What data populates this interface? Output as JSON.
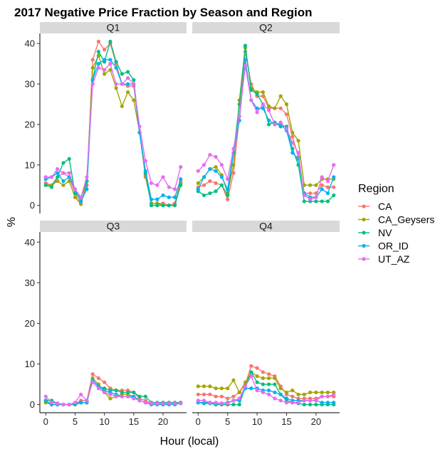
{
  "chart_data": {
    "type": "line",
    "title": "2017 Negative Price Fraction by Season and Region",
    "xlabel": "Hour (local)",
    "ylabel": "%",
    "xlim": [
      -1,
      24
    ],
    "ylim": [
      -2,
      42.5
    ],
    "x_ticks": [
      0,
      5,
      10,
      15,
      20
    ],
    "y_ticks": [
      0,
      10,
      20,
      30,
      40
    ],
    "legend": {
      "title": "Region",
      "position": "right"
    },
    "series_meta": [
      {
        "name": "CA",
        "color": "#F8766D"
      },
      {
        "name": "CA_Geysers",
        "color": "#A3A500"
      },
      {
        "name": "NV",
        "color": "#00BF7D"
      },
      {
        "name": "OR_ID",
        "color": "#00B0F6"
      },
      {
        "name": "UT_AZ",
        "color": "#E76BF3"
      }
    ],
    "x": [
      0,
      1,
      2,
      3,
      4,
      5,
      6,
      7,
      8,
      9,
      10,
      11,
      12,
      13,
      14,
      15,
      16,
      17,
      18,
      19,
      20,
      21,
      22,
      23
    ],
    "panels": [
      {
        "label": "Q1",
        "series": [
          {
            "name": "CA",
            "values": [
              5.5,
              5,
              7,
              8,
              7,
              3,
              0.5,
              5,
              36,
              40.5,
              38.5,
              40,
              35,
              30,
              29.5,
              29.5,
              18,
              7,
              0.5,
              0.5,
              0.5,
              0,
              0.5,
              6
            ]
          },
          {
            "name": "CA_Geysers",
            "values": [
              5,
              5,
              6,
              5,
              6,
              2,
              0.3,
              6,
              34,
              37,
              32.5,
              33.5,
              29,
              24.5,
              28,
              26,
              18,
              7.5,
              0.5,
              0.5,
              0,
              0,
              0,
              5.5
            ]
          },
          {
            "name": "NV",
            "values": [
              5,
              4.5,
              7,
              10.5,
              11.5,
              3,
              2,
              6,
              31,
              38,
              35.5,
              40.5,
              35.5,
              32.5,
              33,
              31,
              18,
              8,
              0,
              0,
              0,
              0,
              0,
              5
            ]
          },
          {
            "name": "OR_ID",
            "values": [
              6.5,
              7,
              8,
              6,
              7,
              4,
              1,
              4,
              31,
              35,
              36,
              36,
              34,
              30,
              30,
              30,
              18,
              8.5,
              1.5,
              1.5,
              2.5,
              2,
              2,
              6.5
            ]
          },
          {
            "name": "UT_AZ",
            "values": [
              7,
              7,
              9,
              8,
              8,
              4,
              2,
              7,
              30,
              34,
              33.5,
              35,
              30,
              30,
              31.5,
              30,
              19.5,
              11,
              5.5,
              5,
              7,
              4.5,
              4,
              9.5
            ]
          }
        ]
      },
      {
        "label": "Q2",
        "series": [
          {
            "name": "CA",
            "values": [
              4.5,
              5,
              6,
              5.5,
              5,
              1.5,
              8,
              22,
              38,
              30,
              27,
              27,
              24,
              24,
              24,
              22.5,
              17,
              12,
              3,
              3,
              3,
              5,
              4.5,
              4.5
            ]
          },
          {
            "name": "CA_Geysers",
            "values": [
              5.5,
              7,
              9,
              9.5,
              7.5,
              3,
              10,
              26,
              39,
              29,
              28,
              28,
              24.5,
              24,
              27,
              25,
              18,
              16,
              5,
              5,
              5,
              6.5,
              6.5,
              6.5
            ]
          },
          {
            "name": "NV",
            "values": [
              3.5,
              2.5,
              3,
              3.5,
              5,
              2.5,
              13,
              25,
              39.5,
              28.5,
              27.5,
              25,
              20,
              20.5,
              19.5,
              19.5,
              14,
              10,
              1,
              1,
              1,
              1,
              1,
              2.5
            ]
          },
          {
            "name": "OR_ID",
            "values": [
              4,
              7,
              9,
              8.5,
              7,
              4,
              13,
              21,
              36,
              26,
              24,
              24,
              21,
              20,
              20,
              18.5,
              13,
              11.5,
              3,
              2,
              2,
              4,
              3,
              7
            ]
          },
          {
            "name": "UT_AZ",
            "values": [
              8.5,
              10,
              12.5,
              12,
              10,
              6.5,
              14,
              22,
              34.5,
              26,
              23,
              25,
              23.5,
              20,
              20.5,
              19,
              15.5,
              13,
              2.5,
              1.5,
              2,
              7,
              6,
              10
            ]
          }
        ]
      },
      {
        "label": "Q3",
        "series": [
          {
            "name": "CA",
            "values": [
              0.5,
              0.5,
              0.3,
              0,
              0,
              0.3,
              1,
              1,
              7.5,
              6.5,
              5.5,
              4,
              3.5,
              3.5,
              3.5,
              3,
              1.5,
              1,
              0.3,
              0.3,
              0.3,
              0.3,
              0.3,
              0.3
            ]
          },
          {
            "name": "CA_Geysers",
            "values": [
              0.5,
              0,
              0,
              0,
              0,
              0,
              0.5,
              0.5,
              6.5,
              5,
              3,
              1.5,
              2,
              2.5,
              2.5,
              2,
              1,
              0.5,
              0.3,
              0.3,
              0.3,
              0.3,
              0.3,
              0.3
            ]
          },
          {
            "name": "NV",
            "values": [
              1,
              1,
              0.3,
              0,
              0,
              0,
              0.5,
              0.5,
              6,
              4.5,
              4,
              3.5,
              3.5,
              3,
              3,
              3,
              2,
              2,
              0.5,
              0.5,
              0.5,
              0.5,
              0.5,
              0.5
            ]
          },
          {
            "name": "OR_ID",
            "values": [
              1,
              0,
              0,
              0,
              0,
              0.3,
              0.5,
              0.5,
              6,
              4.5,
              3.5,
              3,
              2.5,
              2,
              2,
              2,
              1,
              0.5,
              0,
              0,
              0,
              0,
              0,
              0.3
            ]
          },
          {
            "name": "UT_AZ",
            "values": [
              2,
              0.5,
              0.3,
              0,
              0,
              0.5,
              2.5,
              1,
              5.5,
              4,
              3,
              2.5,
              2,
              2,
              2,
              1.5,
              1,
              0.5,
              0.3,
              0.3,
              0.3,
              0.3,
              0.3,
              0.3
            ]
          }
        ]
      },
      {
        "label": "Q4",
        "series": [
          {
            "name": "CA",
            "values": [
              2.5,
              2.5,
              2.5,
              2,
              2,
              1.5,
              2,
              3,
              5,
              9.5,
              9,
              8,
              7.5,
              7,
              4.5,
              2.5,
              2,
              1.5,
              1.5,
              1.5,
              1.5,
              2,
              2,
              2
            ]
          },
          {
            "name": "CA_Geysers",
            "values": [
              4.5,
              4.5,
              4.5,
              4,
              4,
              4,
              6,
              3,
              5.5,
              8,
              7,
              6.5,
              6.5,
              6.5,
              4,
              3,
              3.5,
              2.5,
              2.5,
              3,
              3,
              3,
              3,
              3
            ]
          },
          {
            "name": "NV",
            "values": [
              0.5,
              0.3,
              0.3,
              0,
              0,
              0,
              0,
              0,
              4.5,
              8,
              5.5,
              5,
              5,
              5,
              2.5,
              1,
              0.5,
              0.3,
              0,
              0,
              0,
              0,
              0,
              0
            ]
          },
          {
            "name": "OR_ID",
            "values": [
              0.5,
              0.5,
              0.5,
              0.3,
              0.3,
              0.5,
              1,
              1,
              4,
              4,
              4,
              3.5,
              3.5,
              3,
              2.5,
              1.5,
              1,
              1,
              1,
              1,
              1,
              0.5,
              0.5,
              0.5
            ]
          },
          {
            "name": "UT_AZ",
            "values": [
              1,
              1,
              0.5,
              0.5,
              0.3,
              0.3,
              1,
              1.5,
              4.5,
              7,
              3.5,
              3,
              2.5,
              1.5,
              1,
              0.5,
              0.5,
              0.5,
              1,
              1,
              1,
              2,
              2,
              2.5
            ]
          }
        ]
      }
    ]
  }
}
